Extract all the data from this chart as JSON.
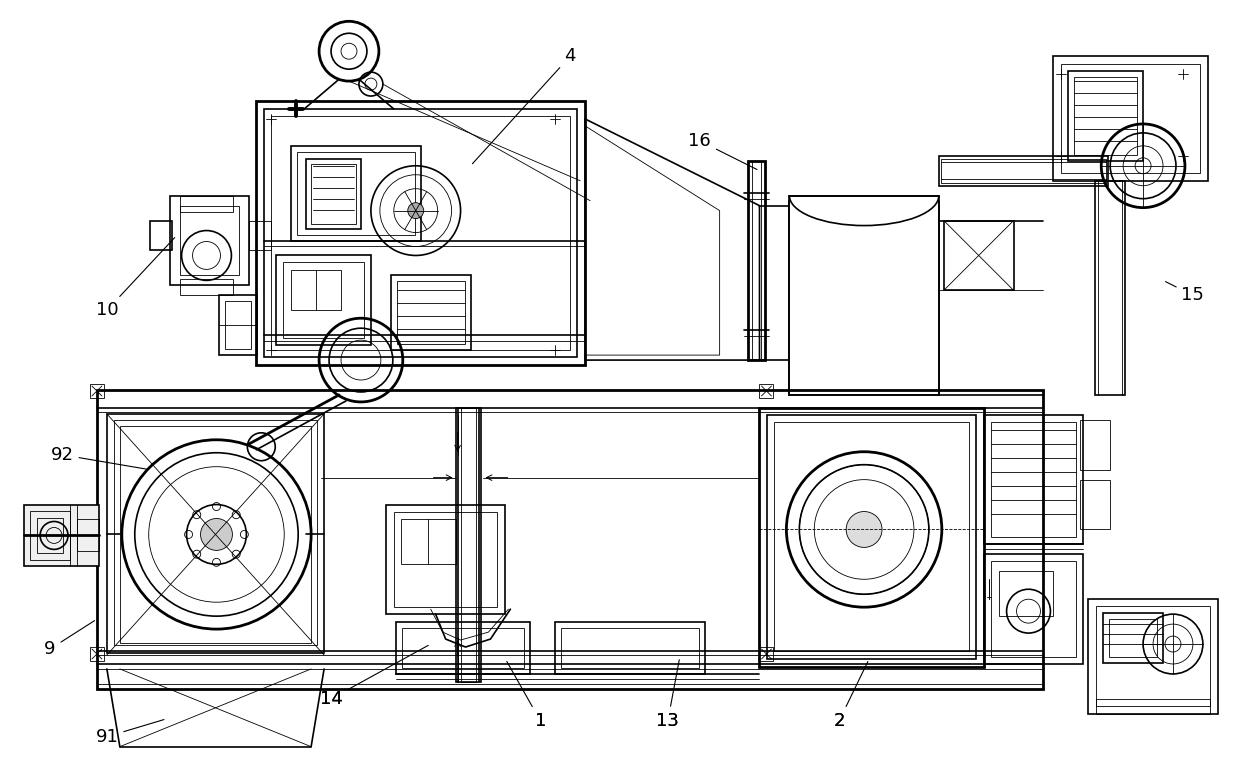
{
  "bg_color": "#ffffff",
  "line_color": "#000000",
  "fig_width": 12.4,
  "fig_height": 7.63,
  "lw_thin": 0.6,
  "lw_med": 1.2,
  "lw_thick": 2.0,
  "lw_xthick": 2.8
}
